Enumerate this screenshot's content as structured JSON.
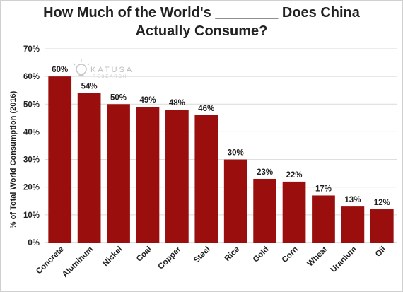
{
  "chart_data": {
    "type": "bar",
    "title_lines": [
      "How Much of the World's ________ Does China",
      "Actually Consume?"
    ],
    "ylabel": "% of Total World Consumption (2016)",
    "xlabel": "",
    "categories": [
      "Concrete",
      "Aluminum",
      "Nickel",
      "Coal",
      "Copper",
      "Steel",
      "Rice",
      "Gold",
      "Corn",
      "Wheat",
      "Uranium",
      "Oil"
    ],
    "values": [
      60,
      54,
      50,
      49,
      48,
      46,
      30,
      23,
      22,
      17,
      13,
      12
    ],
    "data_labels": [
      "60%",
      "54%",
      "50%",
      "49%",
      "48%",
      "46%",
      "30%",
      "23%",
      "22%",
      "17%",
      "13%",
      "12%"
    ],
    "ylim": [
      0,
      70
    ],
    "yticks": [
      0,
      10,
      20,
      30,
      40,
      50,
      60,
      70
    ],
    "ytick_labels": [
      "0%",
      "10%",
      "20%",
      "30%",
      "40%",
      "50%",
      "60%",
      "70%"
    ],
    "grid": true,
    "legend": "none",
    "bar_color": "#9b0e0e"
  },
  "watermark": {
    "name": "KATUSA",
    "sub": "RESEARCH",
    "icon": "lightbulb-icon"
  }
}
